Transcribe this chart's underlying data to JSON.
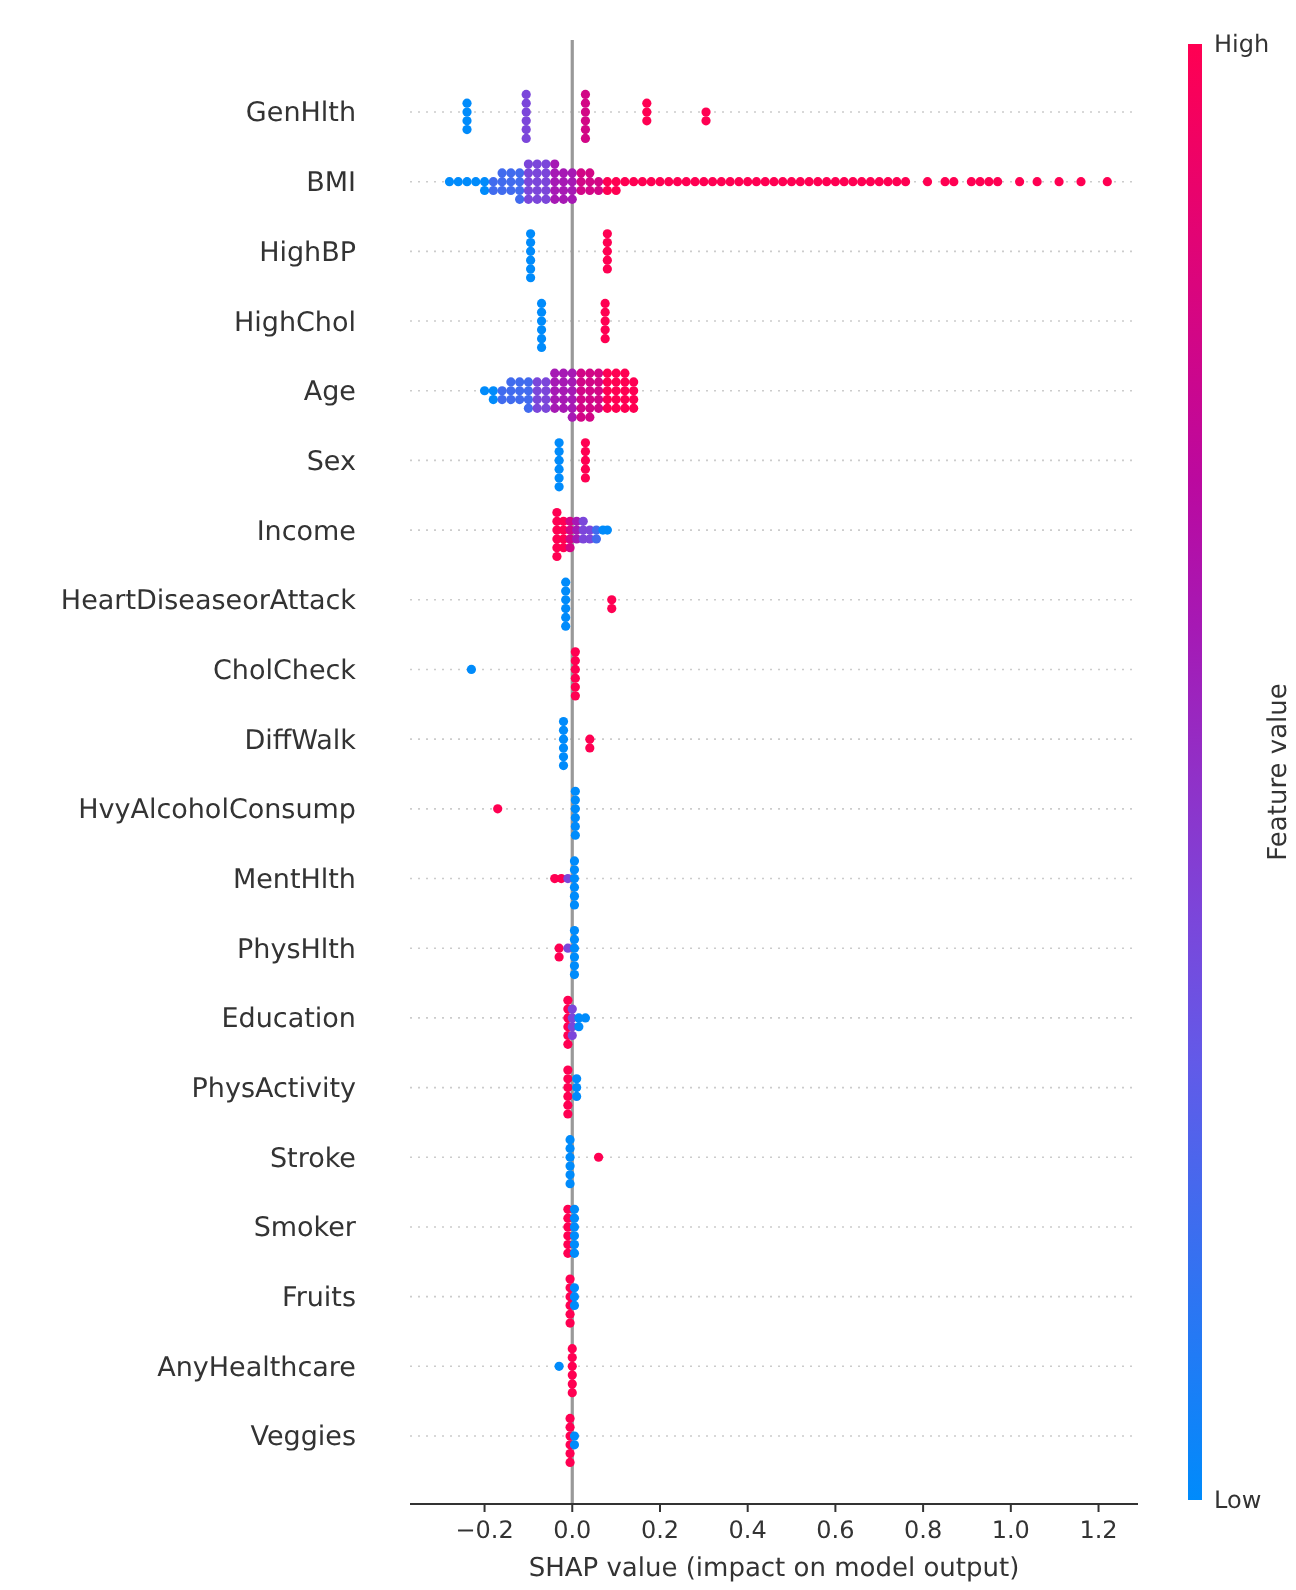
{
  "chart_data": {
    "type": "scatter",
    "orientation": "horizontal",
    "xlabel": "SHAP value (impact on model output)",
    "clabel": "Feature value",
    "grid": "y",
    "marker": "circle",
    "categories": [
      "GenHlth",
      "BMI",
      "HighBP",
      "HighChol",
      "Age",
      "Sex",
      "Income",
      "HeartDiseaseorAttack",
      "CholCheck",
      "DiffWalk",
      "HvyAlcoholConsump",
      "MentHlth",
      "PhysHlth",
      "Education",
      "PhysActivity",
      "Stroke",
      "Smoker",
      "Fruits",
      "AnyHealthcare",
      "Veggies"
    ],
    "xlim": [
      -0.37,
      1.29
    ],
    "xticks": [
      {
        "value": -0.2,
        "label": "−0.2"
      },
      {
        "value": 0,
        "label": "0.0"
      },
      {
        "value": 0.2,
        "label": "0.2"
      },
      {
        "value": 0.4,
        "label": "0.4"
      },
      {
        "value": 0.6,
        "label": "0.6"
      },
      {
        "value": 0.8,
        "label": "0.8"
      },
      {
        "value": 1.0,
        "label": "1.0"
      },
      {
        "value": 1.2,
        "label": "1.2"
      }
    ],
    "clim": [
      0,
      1
    ],
    "cticks": [
      {
        "value": 0,
        "label": "Low"
      },
      {
        "value": 1,
        "label": "High"
      }
    ],
    "ref_lines": [
      {
        "axis": "x",
        "value": 0,
        "color": "#999999"
      }
    ],
    "series": [
      {
        "x": [
          "GenHlth",
          "GenHlth",
          "GenHlth",
          "GenHlth",
          "GenHlth",
          "GenHlth",
          "GenHlth",
          "GenHlth",
          "GenHlth",
          "GenHlth",
          "GenHlth",
          "GenHlth",
          "GenHlth",
          "GenHlth",
          "GenHlth",
          "GenHlth",
          "GenHlth",
          "GenHlth",
          "GenHlth",
          "GenHlth",
          "GenHlth"
        ],
        "values": [
          -0.24,
          -0.24,
          -0.24,
          -0.24,
          -0.105,
          -0.105,
          -0.105,
          -0.105,
          -0.105,
          -0.105,
          0.03,
          0.03,
          0.03,
          0.03,
          0.03,
          0.03,
          0.17,
          0.17,
          0.17,
          0.305,
          0.305
        ],
        "colors": [
          "#008bfb",
          "#008bfb",
          "#008bfb",
          "#008bfb",
          "#7b46da",
          "#7b46da",
          "#7b46da",
          "#7b46da",
          "#7b46da",
          "#7b46da",
          "#d20686",
          "#d20686",
          "#d20686",
          "#d20686",
          "#d20686",
          "#d20686",
          "#ff0052",
          "#ff0052",
          "#ff0052",
          "#ff0052",
          "#ff0052"
        ]
      },
      {
        "x": [
          "BMI",
          "BMI",
          "BMI",
          "BMI",
          "BMI",
          "BMI",
          "BMI",
          "BMI",
          "BMI",
          "BMI",
          "BMI",
          "BMI",
          "BMI",
          "BMI",
          "BMI",
          "BMI",
          "BMI",
          "BMI",
          "BMI",
          "BMI",
          "BMI",
          "BMI",
          "BMI",
          "BMI",
          "BMI",
          "BMI",
          "BMI",
          "BMI",
          "BMI",
          "BMI",
          "BMI",
          "BMI",
          "BMI",
          "BMI",
          "BMI",
          "BMI",
          "BMI",
          "BMI",
          "BMI",
          "BMI",
          "BMI",
          "BMI",
          "BMI",
          "BMI",
          "BMI",
          "BMI",
          "BMI",
          "BMI",
          "BMI",
          "BMI",
          "BMI",
          "BMI",
          "BMI",
          "BMI",
          "BMI",
          "BMI",
          "BMI",
          "BMI",
          "BMI",
          "BMI",
          "BMI",
          "BMI",
          "BMI",
          "BMI",
          "BMI",
          "BMI",
          "BMI",
          "BMI",
          "BMI",
          "BMI",
          "BMI",
          "BMI",
          "BMI",
          "BMI",
          "BMI",
          "BMI",
          "BMI",
          "BMI",
          "BMI",
          "BMI",
          "BMI",
          "BMI",
          "BMI",
          "BMI",
          "BMI",
          "BMI",
          "BMI",
          "BMI",
          "BMI",
          "BMI",
          "BMI",
          "BMI",
          "BMI",
          "BMI",
          "BMI",
          "BMI",
          "BMI",
          "BMI",
          "BMI",
          "BMI",
          "BMI",
          "BMI",
          "BMI"
        ],
        "values": [
          -0.28,
          -0.26,
          -0.24,
          -0.22,
          -0.2,
          -0.2,
          -0.18,
          -0.18,
          -0.16,
          -0.16,
          -0.16,
          -0.14,
          -0.14,
          -0.14,
          -0.12,
          -0.12,
          -0.12,
          -0.12,
          -0.1,
          -0.1,
          -0.1,
          -0.1,
          -0.1,
          -0.08,
          -0.08,
          -0.08,
          -0.08,
          -0.08,
          -0.06,
          -0.06,
          -0.06,
          -0.06,
          -0.06,
          -0.04,
          -0.04,
          -0.04,
          -0.04,
          -0.04,
          -0.02,
          -0.02,
          -0.02,
          -0.02,
          0,
          0,
          0,
          0,
          0.02,
          0.02,
          0.02,
          0.04,
          0.04,
          0.04,
          0.06,
          0.06,
          0.08,
          0.08,
          0.1,
          0.1,
          0.12,
          0.14,
          0.16,
          0.18,
          0.2,
          0.22,
          0.24,
          0.26,
          0.28,
          0.3,
          0.32,
          0.34,
          0.36,
          0.38,
          0.4,
          0.42,
          0.44,
          0.46,
          0.48,
          0.5,
          0.52,
          0.54,
          0.56,
          0.58,
          0.6,
          0.62,
          0.64,
          0.66,
          0.68,
          0.7,
          0.72,
          0.74,
          0.76,
          0.81,
          0.85,
          0.87,
          0.91,
          0.93,
          0.95,
          0.97,
          1.02,
          1.06,
          1.11,
          1.16,
          1.22
        ],
        "colors": [
          "#008bfb",
          "#008bfb",
          "#008bfb",
          "#008bfb",
          "#008bfb",
          "#008bfb",
          "#416bee",
          "#416bee",
          "#416bee",
          "#416bee",
          "#416bee",
          "#416bee",
          "#416bee",
          "#416bee",
          "#416bee",
          "#416bee",
          "#416bee",
          "#416bee",
          "#7b46da",
          "#7b46da",
          "#7b46da",
          "#7b46da",
          "#7b46da",
          "#7b46da",
          "#7b46da",
          "#7b46da",
          "#7b46da",
          "#7b46da",
          "#7b46da",
          "#7b46da",
          "#7b46da",
          "#7b46da",
          "#7b46da",
          "#a619b4",
          "#a619b4",
          "#a619b4",
          "#a619b4",
          "#a619b4",
          "#a619b4",
          "#a619b4",
          "#a619b4",
          "#a619b4",
          "#a619b4",
          "#a619b4",
          "#a619b4",
          "#a619b4",
          "#d20686",
          "#d20686",
          "#d20686",
          "#d20686",
          "#d20686",
          "#d20686",
          "#d20686",
          "#d20686",
          "#ff0052",
          "#ff0052",
          "#ff0052",
          "#ff0052",
          "#ff0052",
          "#ff0052",
          "#ff0052",
          "#ff0052",
          "#ff0052",
          "#ff0052",
          "#ff0052",
          "#ff0052",
          "#ff0052",
          "#ff0052",
          "#ff0052",
          "#ff0052",
          "#ff0052",
          "#ff0052",
          "#ff0052",
          "#ff0052",
          "#ff0052",
          "#ff0052",
          "#ff0052",
          "#ff0052",
          "#ff0052",
          "#ff0052",
          "#ff0052",
          "#ff0052",
          "#ff0052",
          "#ff0052",
          "#ff0052",
          "#ff0052",
          "#ff0052",
          "#ff0052",
          "#ff0052",
          "#ff0052",
          "#ff0052",
          "#ff0052",
          "#ff0052",
          "#ff0052",
          "#ff0052",
          "#ff0052",
          "#ff0052",
          "#ff0052",
          "#ff0052",
          "#ff0052",
          "#ff0052",
          "#ff0052",
          "#ff0052"
        ]
      },
      {
        "x": [
          "HighBP",
          "HighBP",
          "HighBP",
          "HighBP",
          "HighBP",
          "HighBP",
          "HighBP",
          "HighBP",
          "HighBP",
          "HighBP",
          "HighBP"
        ],
        "values": [
          -0.095,
          -0.095,
          -0.095,
          -0.095,
          -0.095,
          -0.095,
          0.08,
          0.08,
          0.08,
          0.08,
          0.08
        ],
        "colors": [
          "#008bfb",
          "#008bfb",
          "#008bfb",
          "#008bfb",
          "#008bfb",
          "#008bfb",
          "#ff0052",
          "#ff0052",
          "#ff0052",
          "#ff0052",
          "#ff0052"
        ]
      },
      {
        "x": [
          "HighChol",
          "HighChol",
          "HighChol",
          "HighChol",
          "HighChol",
          "HighChol",
          "HighChol",
          "HighChol",
          "HighChol",
          "HighChol",
          "HighChol"
        ],
        "values": [
          -0.07,
          -0.07,
          -0.07,
          -0.07,
          -0.07,
          -0.07,
          0.075,
          0.075,
          0.075,
          0.075,
          0.075
        ],
        "colors": [
          "#008bfb",
          "#008bfb",
          "#008bfb",
          "#008bfb",
          "#008bfb",
          "#008bfb",
          "#ff0052",
          "#ff0052",
          "#ff0052",
          "#ff0052",
          "#ff0052"
        ]
      },
      {
        "x": [
          "Age",
          "Age",
          "Age",
          "Age",
          "Age",
          "Age",
          "Age",
          "Age",
          "Age",
          "Age",
          "Age",
          "Age",
          "Age",
          "Age",
          "Age",
          "Age",
          "Age",
          "Age",
          "Age",
          "Age",
          "Age",
          "Age",
          "Age",
          "Age",
          "Age",
          "Age",
          "Age",
          "Age",
          "Age",
          "Age",
          "Age",
          "Age",
          "Age",
          "Age",
          "Age",
          "Age",
          "Age",
          "Age",
          "Age",
          "Age",
          "Age",
          "Age",
          "Age",
          "Age",
          "Age",
          "Age",
          "Age",
          "Age",
          "Age",
          "Age",
          "Age",
          "Age",
          "Age",
          "Age",
          "Age",
          "Age",
          "Age",
          "Age",
          "Age",
          "Age",
          "Age",
          "Age",
          "Age",
          "Age",
          "Age",
          "Age",
          "Age",
          "Age",
          "Age",
          "Age",
          "Age",
          "Age",
          "Age",
          "Age",
          "Age"
        ],
        "values": [
          -0.2,
          -0.18,
          -0.18,
          -0.16,
          -0.16,
          -0.14,
          -0.14,
          -0.14,
          -0.12,
          -0.12,
          -0.12,
          -0.1,
          -0.1,
          -0.1,
          -0.1,
          -0.08,
          -0.08,
          -0.08,
          -0.08,
          -0.06,
          -0.06,
          -0.06,
          -0.06,
          -0.04,
          -0.04,
          -0.04,
          -0.04,
          -0.04,
          -0.02,
          -0.02,
          -0.02,
          -0.02,
          -0.02,
          0,
          0,
          0,
          0,
          0,
          0,
          0.02,
          0.02,
          0.02,
          0.02,
          0.02,
          0.02,
          0.04,
          0.04,
          0.04,
          0.04,
          0.04,
          0.04,
          0.06,
          0.06,
          0.06,
          0.06,
          0.06,
          0.08,
          0.08,
          0.08,
          0.08,
          0.08,
          0.1,
          0.1,
          0.1,
          0.1,
          0.1,
          0.12,
          0.12,
          0.12,
          0.12,
          0.12,
          0.14,
          0.14,
          0.14,
          0.14
        ],
        "colors": [
          "#008bfb",
          "#008bfb",
          "#008bfb",
          "#416bee",
          "#416bee",
          "#416bee",
          "#416bee",
          "#416bee",
          "#416bee",
          "#416bee",
          "#416bee",
          "#416bee",
          "#416bee",
          "#416bee",
          "#416bee",
          "#7b46da",
          "#7b46da",
          "#7b46da",
          "#7b46da",
          "#7b46da",
          "#7b46da",
          "#7b46da",
          "#7b46da",
          "#a619b4",
          "#a619b4",
          "#a619b4",
          "#a619b4",
          "#a619b4",
          "#a619b4",
          "#a619b4",
          "#a619b4",
          "#a619b4",
          "#a619b4",
          "#a619b4",
          "#a619b4",
          "#a619b4",
          "#a619b4",
          "#a619b4",
          "#a619b4",
          "#d20686",
          "#d20686",
          "#d20686",
          "#d20686",
          "#d20686",
          "#d20686",
          "#d20686",
          "#d20686",
          "#d20686",
          "#d20686",
          "#d20686",
          "#d20686",
          "#d20686",
          "#d20686",
          "#d20686",
          "#d20686",
          "#d20686",
          "#ff0052",
          "#ff0052",
          "#ff0052",
          "#ff0052",
          "#ff0052",
          "#ff0052",
          "#ff0052",
          "#ff0052",
          "#ff0052",
          "#ff0052",
          "#ff0052",
          "#ff0052",
          "#ff0052",
          "#ff0052",
          "#ff0052",
          "#ff0052",
          "#ff0052",
          "#ff0052",
          "#ff0052"
        ]
      },
      {
        "x": [
          "Sex",
          "Sex",
          "Sex",
          "Sex",
          "Sex",
          "Sex",
          "Sex",
          "Sex",
          "Sex",
          "Sex",
          "Sex"
        ],
        "values": [
          -0.03,
          -0.03,
          -0.03,
          -0.03,
          -0.03,
          -0.03,
          0.03,
          0.03,
          0.03,
          0.03,
          0.03
        ],
        "colors": [
          "#008bfb",
          "#008bfb",
          "#008bfb",
          "#008bfb",
          "#008bfb",
          "#008bfb",
          "#ff0052",
          "#ff0052",
          "#ff0052",
          "#ff0052",
          "#ff0052"
        ]
      },
      {
        "x": [
          "Income",
          "Income",
          "Income",
          "Income",
          "Income",
          "Income",
          "Income",
          "Income",
          "Income",
          "Income",
          "Income",
          "Income",
          "Income",
          "Income",
          "Income",
          "Income",
          "Income",
          "Income",
          "Income",
          "Income",
          "Income",
          "Income",
          "Income",
          "Income",
          "Income",
          "Income"
        ],
        "values": [
          -0.035,
          -0.035,
          -0.035,
          -0.035,
          -0.035,
          -0.035,
          -0.02,
          -0.02,
          -0.02,
          -0.02,
          -0.005,
          -0.005,
          -0.005,
          -0.005,
          0.01,
          0.01,
          0.01,
          0.025,
          0.025,
          0.025,
          0.04,
          0.04,
          0.055,
          0.055,
          0.07,
          0.08
        ],
        "colors": [
          "#ff0052",
          "#ff0052",
          "#ff0052",
          "#ff0052",
          "#ff0052",
          "#ff0052",
          "#ff0052",
          "#ff0052",
          "#ff0052",
          "#ff0052",
          "#d20686",
          "#d20686",
          "#d20686",
          "#d20686",
          "#a619b4",
          "#a619b4",
          "#a619b4",
          "#7b46da",
          "#7b46da",
          "#7b46da",
          "#7b46da",
          "#7b46da",
          "#416bee",
          "#416bee",
          "#008bfb",
          "#008bfb"
        ]
      },
      {
        "x": [
          "HeartDiseaseorAttack",
          "HeartDiseaseorAttack",
          "HeartDiseaseorAttack",
          "HeartDiseaseorAttack",
          "HeartDiseaseorAttack",
          "HeartDiseaseorAttack",
          "HeartDiseaseorAttack",
          "HeartDiseaseorAttack"
        ],
        "values": [
          -0.015,
          -0.015,
          -0.015,
          -0.015,
          -0.015,
          -0.015,
          0.09,
          0.09
        ],
        "colors": [
          "#008bfb",
          "#008bfb",
          "#008bfb",
          "#008bfb",
          "#008bfb",
          "#008bfb",
          "#ff0052",
          "#ff0052"
        ]
      },
      {
        "x": [
          "CholCheck",
          "CholCheck",
          "CholCheck",
          "CholCheck",
          "CholCheck",
          "CholCheck",
          "CholCheck"
        ],
        "values": [
          -0.23,
          0.007,
          0.007,
          0.007,
          0.007,
          0.007,
          0.007
        ],
        "colors": [
          "#008bfb",
          "#ff0052",
          "#ff0052",
          "#ff0052",
          "#ff0052",
          "#ff0052",
          "#ff0052"
        ]
      },
      {
        "x": [
          "DiffWalk",
          "DiffWalk",
          "DiffWalk",
          "DiffWalk",
          "DiffWalk",
          "DiffWalk",
          "DiffWalk",
          "DiffWalk"
        ],
        "values": [
          -0.02,
          -0.02,
          -0.02,
          -0.02,
          -0.02,
          -0.02,
          0.04,
          0.04
        ],
        "colors": [
          "#008bfb",
          "#008bfb",
          "#008bfb",
          "#008bfb",
          "#008bfb",
          "#008bfb",
          "#ff0052",
          "#ff0052"
        ]
      },
      {
        "x": [
          "HvyAlcoholConsump",
          "HvyAlcoholConsump",
          "HvyAlcoholConsump",
          "HvyAlcoholConsump",
          "HvyAlcoholConsump",
          "HvyAlcoholConsump",
          "HvyAlcoholConsump"
        ],
        "values": [
          -0.17,
          0.007,
          0.007,
          0.007,
          0.007,
          0.007,
          0.007
        ],
        "colors": [
          "#ff0052",
          "#008bfb",
          "#008bfb",
          "#008bfb",
          "#008bfb",
          "#008bfb",
          "#008bfb"
        ]
      },
      {
        "x": [
          "MentHlth",
          "MentHlth",
          "MentHlth",
          "MentHlth",
          "MentHlth",
          "MentHlth",
          "MentHlth",
          "MentHlth",
          "MentHlth"
        ],
        "values": [
          -0.04,
          -0.025,
          -0.01,
          0.005,
          0.005,
          0.005,
          0.005,
          0.005,
          0.005
        ],
        "colors": [
          "#ff0052",
          "#ff0052",
          "#7b46da",
          "#008bfb",
          "#008bfb",
          "#008bfb",
          "#008bfb",
          "#008bfb",
          "#008bfb"
        ]
      },
      {
        "x": [
          "PhysHlth",
          "PhysHlth",
          "PhysHlth",
          "PhysHlth",
          "PhysHlth",
          "PhysHlth",
          "PhysHlth",
          "PhysHlth",
          "PhysHlth"
        ],
        "values": [
          -0.03,
          -0.03,
          -0.01,
          0.005,
          0.005,
          0.005,
          0.005,
          0.005,
          0.005
        ],
        "colors": [
          "#ff0052",
          "#ff0052",
          "#7b46da",
          "#008bfb",
          "#008bfb",
          "#008bfb",
          "#008bfb",
          "#008bfb",
          "#008bfb"
        ]
      },
      {
        "x": [
          "Education",
          "Education",
          "Education",
          "Education",
          "Education",
          "Education",
          "Education",
          "Education",
          "Education",
          "Education",
          "Education",
          "Education",
          "Education"
        ],
        "values": [
          -0.01,
          -0.01,
          -0.01,
          -0.01,
          -0.01,
          -0.01,
          0,
          0,
          0,
          0,
          0.015,
          0.015,
          0.03
        ],
        "colors": [
          "#ff0052",
          "#ff0052",
          "#ff0052",
          "#ff0052",
          "#ff0052",
          "#ff0052",
          "#7b46da",
          "#7b46da",
          "#7b46da",
          "#7b46da",
          "#008bfb",
          "#008bfb",
          "#008bfb"
        ]
      },
      {
        "x": [
          "PhysActivity",
          "PhysActivity",
          "PhysActivity",
          "PhysActivity",
          "PhysActivity",
          "PhysActivity",
          "PhysActivity",
          "PhysActivity",
          "PhysActivity"
        ],
        "values": [
          -0.01,
          -0.01,
          -0.01,
          -0.01,
          -0.01,
          -0.01,
          0.01,
          0.01,
          0.01
        ],
        "colors": [
          "#ff0052",
          "#ff0052",
          "#ff0052",
          "#ff0052",
          "#ff0052",
          "#ff0052",
          "#008bfb",
          "#008bfb",
          "#008bfb"
        ]
      },
      {
        "x": [
          "Stroke",
          "Stroke",
          "Stroke",
          "Stroke",
          "Stroke",
          "Stroke",
          "Stroke"
        ],
        "values": [
          -0.005,
          -0.005,
          -0.005,
          -0.005,
          -0.005,
          -0.005,
          0.06
        ],
        "colors": [
          "#008bfb",
          "#008bfb",
          "#008bfb",
          "#008bfb",
          "#008bfb",
          "#008bfb",
          "#ff0052"
        ]
      },
      {
        "x": [
          "Smoker",
          "Smoker",
          "Smoker",
          "Smoker",
          "Smoker",
          "Smoker",
          "Smoker",
          "Smoker",
          "Smoker",
          "Smoker",
          "Smoker",
          "Smoker"
        ],
        "values": [
          -0.01,
          -0.01,
          -0.01,
          -0.01,
          -0.01,
          -0.01,
          0.005,
          0.005,
          0.005,
          0.005,
          0.005,
          0.005
        ],
        "colors": [
          "#ff0052",
          "#ff0052",
          "#ff0052",
          "#ff0052",
          "#ff0052",
          "#ff0052",
          "#008bfb",
          "#008bfb",
          "#008bfb",
          "#008bfb",
          "#008bfb",
          "#008bfb"
        ]
      },
      {
        "x": [
          "Fruits",
          "Fruits",
          "Fruits",
          "Fruits",
          "Fruits",
          "Fruits",
          "Fruits",
          "Fruits",
          "Fruits"
        ],
        "values": [
          -0.005,
          -0.005,
          -0.005,
          -0.005,
          -0.005,
          -0.005,
          0.005,
          0.005,
          0.005
        ],
        "colors": [
          "#ff0052",
          "#ff0052",
          "#ff0052",
          "#ff0052",
          "#ff0052",
          "#ff0052",
          "#008bfb",
          "#008bfb",
          "#008bfb"
        ]
      },
      {
        "x": [
          "AnyHealthcare",
          "AnyHealthcare",
          "AnyHealthcare",
          "AnyHealthcare",
          "AnyHealthcare",
          "AnyHealthcare",
          "AnyHealthcare"
        ],
        "values": [
          -0.03,
          0,
          0,
          0,
          0,
          0,
          0
        ],
        "colors": [
          "#008bfb",
          "#ff0052",
          "#ff0052",
          "#ff0052",
          "#ff0052",
          "#ff0052",
          "#ff0052"
        ]
      },
      {
        "x": [
          "Veggies",
          "Veggies",
          "Veggies",
          "Veggies",
          "Veggies",
          "Veggies",
          "Veggies",
          "Veggies"
        ],
        "values": [
          -0.005,
          -0.005,
          -0.005,
          -0.005,
          -0.005,
          -0.005,
          0.005,
          0.005
        ],
        "colors": [
          "#ff0052",
          "#ff0052",
          "#ff0052",
          "#ff0052",
          "#ff0052",
          "#ff0052",
          "#008bfb",
          "#008bfb"
        ]
      }
    ]
  }
}
